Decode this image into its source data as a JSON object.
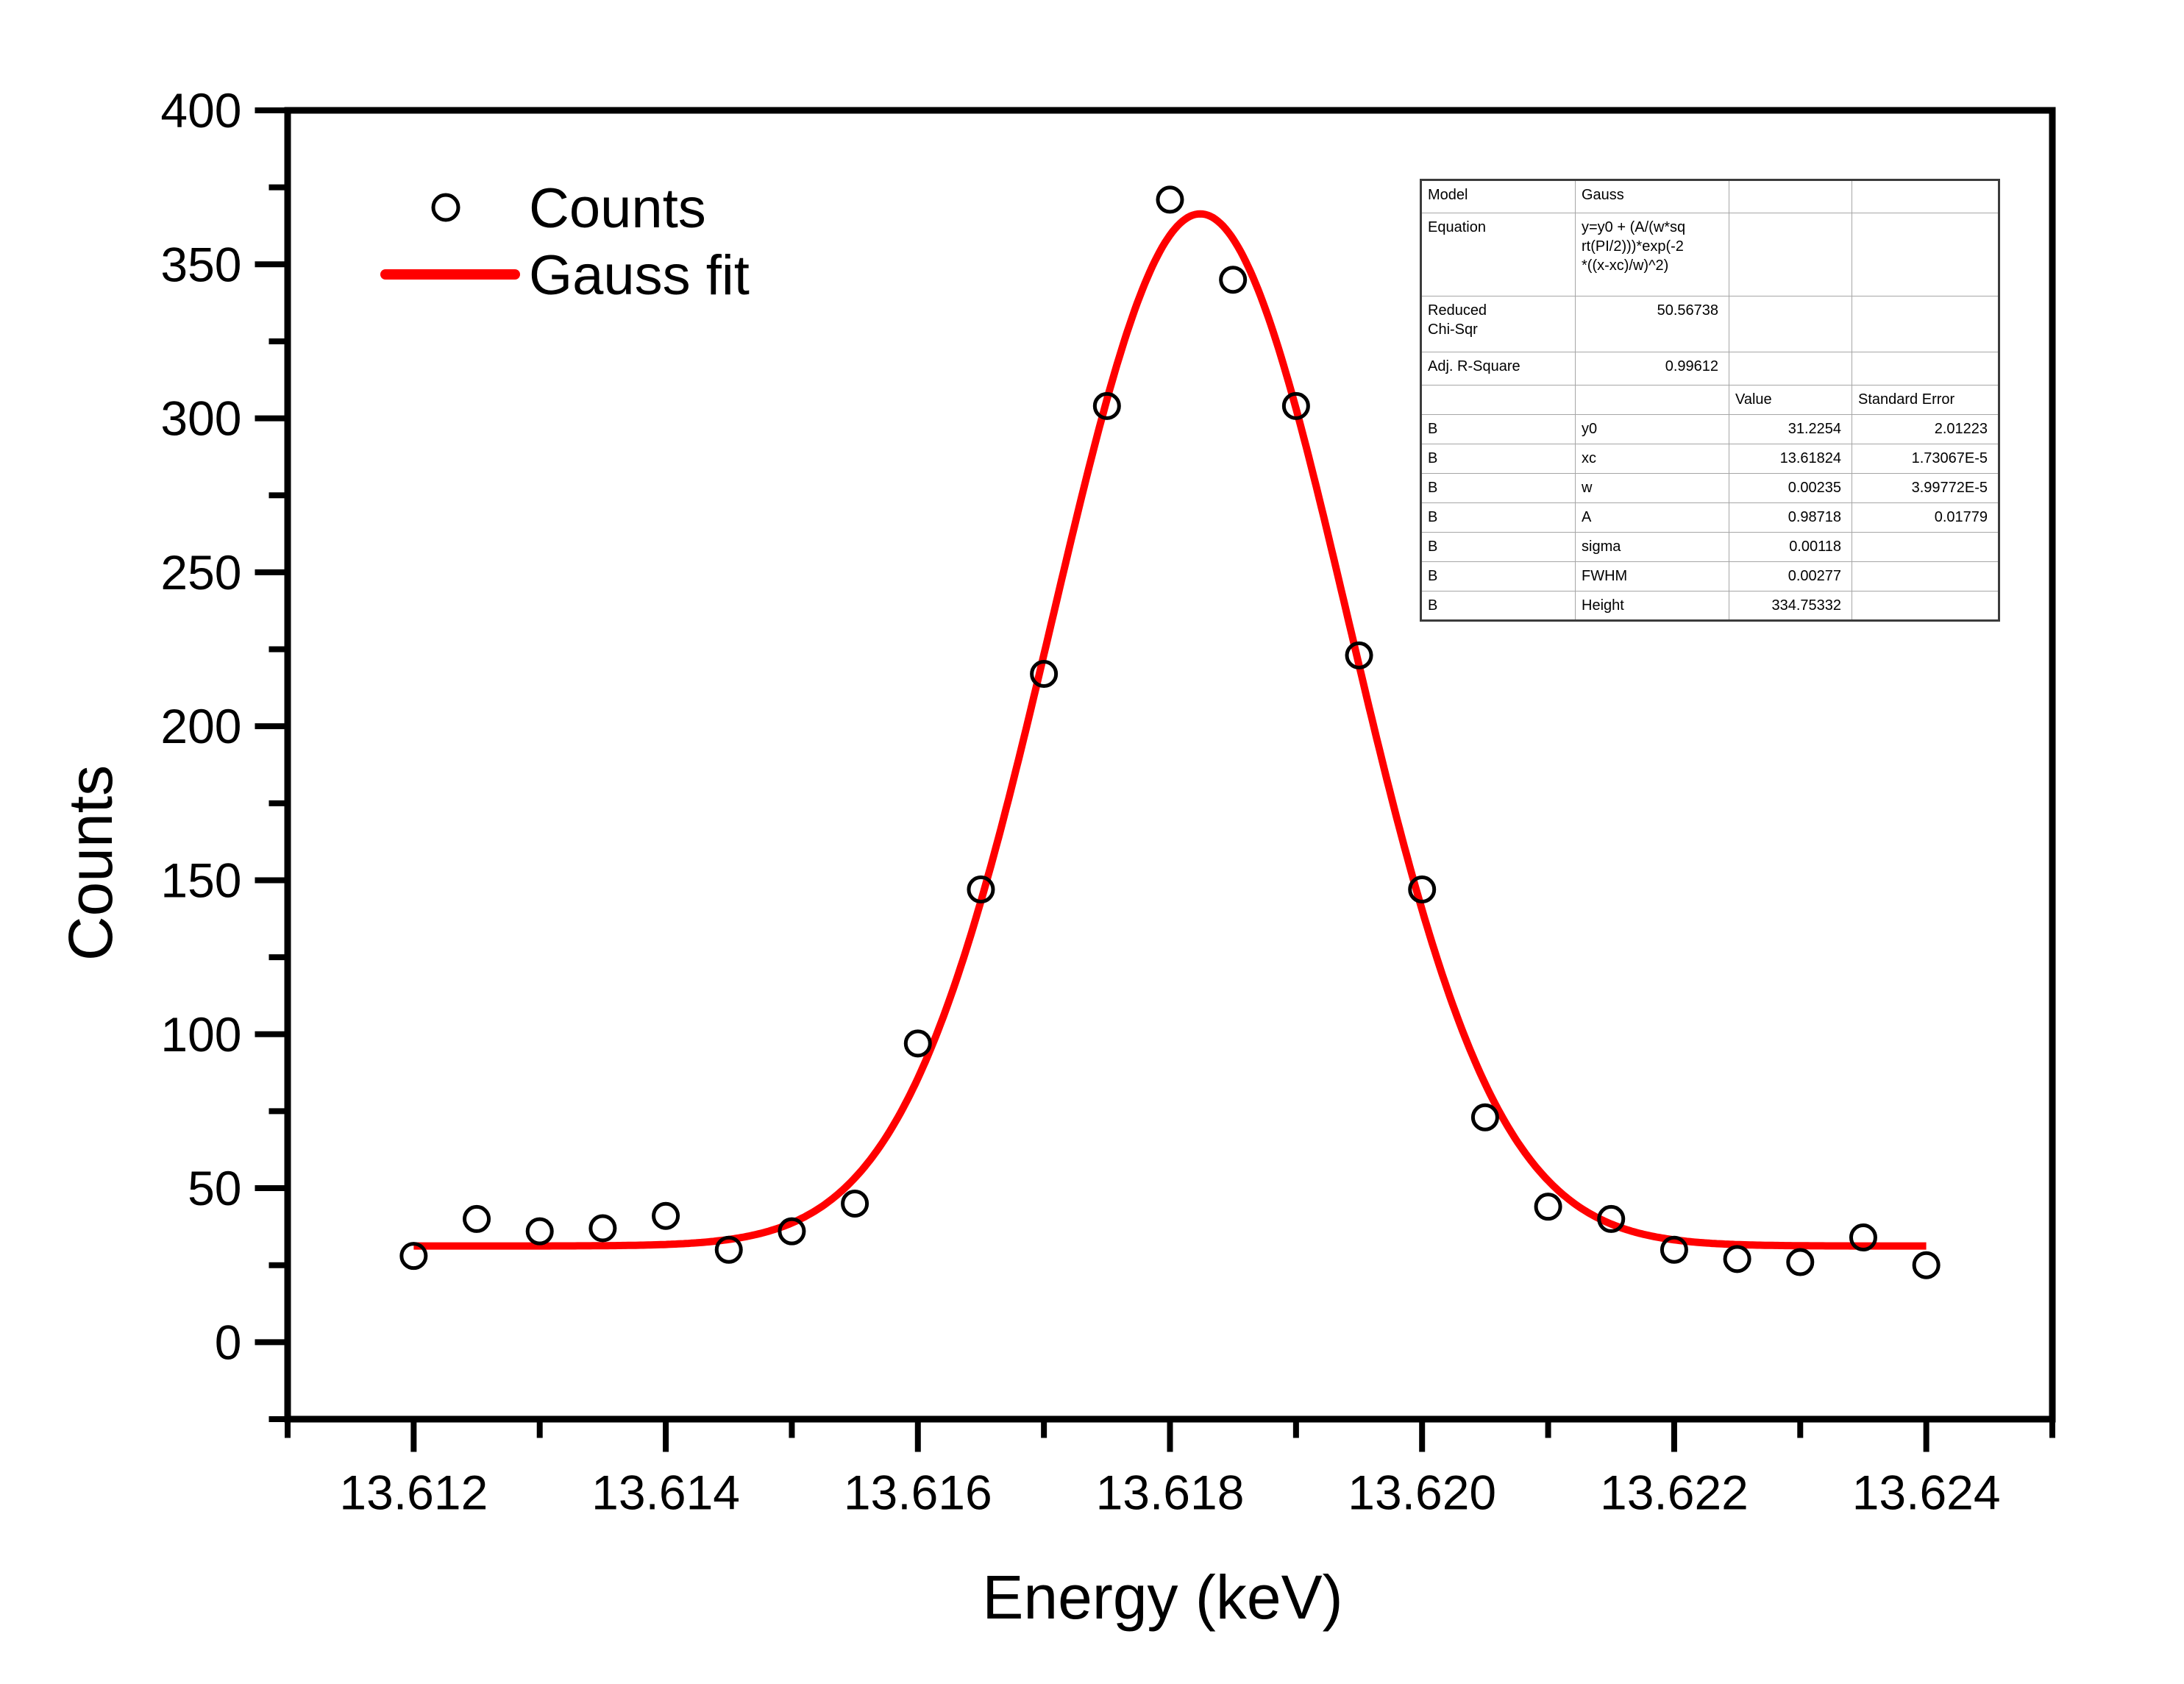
{
  "figure": {
    "background": "#ffffff"
  },
  "chart_data": {
    "type": "scatter",
    "title": "",
    "x_axis": {
      "label": "Energy (keV)",
      "range": [
        13.611,
        13.625
      ],
      "major_ticks": [
        13.612,
        13.614,
        13.616,
        13.618,
        13.62,
        13.622,
        13.624
      ],
      "major_tick_labels": [
        "13.612",
        "13.614",
        "13.616",
        "13.618",
        "13.620",
        "13.622",
        "13.624"
      ],
      "minor_ticks": [
        13.611,
        13.613,
        13.615,
        13.617,
        13.619,
        13.621,
        13.623,
        13.625
      ]
    },
    "y_axis": {
      "label": "Counts",
      "range": [
        -25,
        400
      ],
      "major_ticks": [
        0,
        50,
        100,
        150,
        200,
        250,
        300,
        350,
        400
      ],
      "major_tick_labels": [
        "0",
        "50",
        "100",
        "150",
        "200",
        "250",
        "300",
        "350",
        "400"
      ],
      "minor_ticks": [
        -25,
        25,
        75,
        125,
        175,
        225,
        275,
        325,
        375
      ]
    },
    "grid": false,
    "legend": {
      "position": "top-left-inside",
      "entries": [
        {
          "label": "Counts",
          "marker": "open-circle",
          "color": "#000000"
        },
        {
          "label": "Gauss fit",
          "marker": "line",
          "color": "#ff0000"
        }
      ]
    },
    "series": [
      {
        "name": "Counts",
        "type": "scatter",
        "marker": "open-circle",
        "color": "#000000",
        "x": [
          13.612,
          13.6125,
          13.613,
          13.6135,
          13.614,
          13.6145,
          13.615,
          13.6155,
          13.616,
          13.6165,
          13.617,
          13.6175,
          13.618,
          13.6185,
          13.619,
          13.6195,
          13.62,
          13.6205,
          13.621,
          13.6215,
          13.622,
          13.6225,
          13.623,
          13.6235,
          13.624
        ],
        "y": [
          28,
          40,
          36,
          37,
          41,
          30,
          36,
          45,
          97,
          147,
          217,
          304,
          371,
          345,
          304,
          223,
          147,
          73,
          44,
          40,
          30,
          27,
          26,
          34,
          25
        ]
      },
      {
        "name": "Gauss fit",
        "type": "line",
        "color": "#ff0000",
        "x_range": [
          13.612,
          13.624
        ],
        "fit_params": {
          "y0": 31.2254,
          "xc": 13.61824,
          "w": 0.00235,
          "A": 0.98718
        }
      }
    ]
  },
  "fit_table": {
    "rows": [
      {
        "type": "info",
        "c1": [
          "Model"
        ],
        "c2": [
          "Gauss"
        ],
        "c3": [],
        "c4": []
      },
      {
        "type": "equation",
        "c1": [
          "Equation"
        ],
        "c2": [
          "y=y0 + (A/(w*sq",
          "rt(PI/2)))*exp(-2",
          "*((x-xc)/w)^2)"
        ],
        "c3": [],
        "c4": []
      },
      {
        "type": "stat",
        "c1": [
          "Reduced",
          "Chi-Sqr"
        ],
        "c2": [
          "50.56738"
        ],
        "c3": [],
        "c4": []
      },
      {
        "type": "stat",
        "c1": [
          "Adj. R-Square"
        ],
        "c2": [
          "0.99612"
        ],
        "c3": [],
        "c4": []
      },
      {
        "type": "header",
        "c1": [],
        "c2": [],
        "c3": [
          "Value"
        ],
        "c4": [
          "Standard Error"
        ]
      },
      {
        "type": "param",
        "c1": [
          "B"
        ],
        "c2": [
          "y0"
        ],
        "c3": [
          "31.2254"
        ],
        "c4": [
          "2.01223"
        ]
      },
      {
        "type": "param",
        "c1": [
          "B"
        ],
        "c2": [
          "xc"
        ],
        "c3": [
          "13.61824"
        ],
        "c4": [
          "1.73067E-5"
        ]
      },
      {
        "type": "param",
        "c1": [
          "B"
        ],
        "c2": [
          "w"
        ],
        "c3": [
          "0.00235"
        ],
        "c4": [
          "3.99772E-5"
        ]
      },
      {
        "type": "param",
        "c1": [
          "B"
        ],
        "c2": [
          "A"
        ],
        "c3": [
          "0.98718"
        ],
        "c4": [
          "0.01779"
        ]
      },
      {
        "type": "param",
        "c1": [
          "B"
        ],
        "c2": [
          "sigma"
        ],
        "c3": [
          "0.00118"
        ],
        "c4": []
      },
      {
        "type": "param",
        "c1": [
          "B"
        ],
        "c2": [
          "FWHM"
        ],
        "c3": [
          "0.00277"
        ],
        "c4": []
      },
      {
        "type": "param",
        "c1": [
          "B"
        ],
        "c2": [
          "Height"
        ],
        "c3": [
          "334.75332"
        ],
        "c4": []
      }
    ]
  }
}
